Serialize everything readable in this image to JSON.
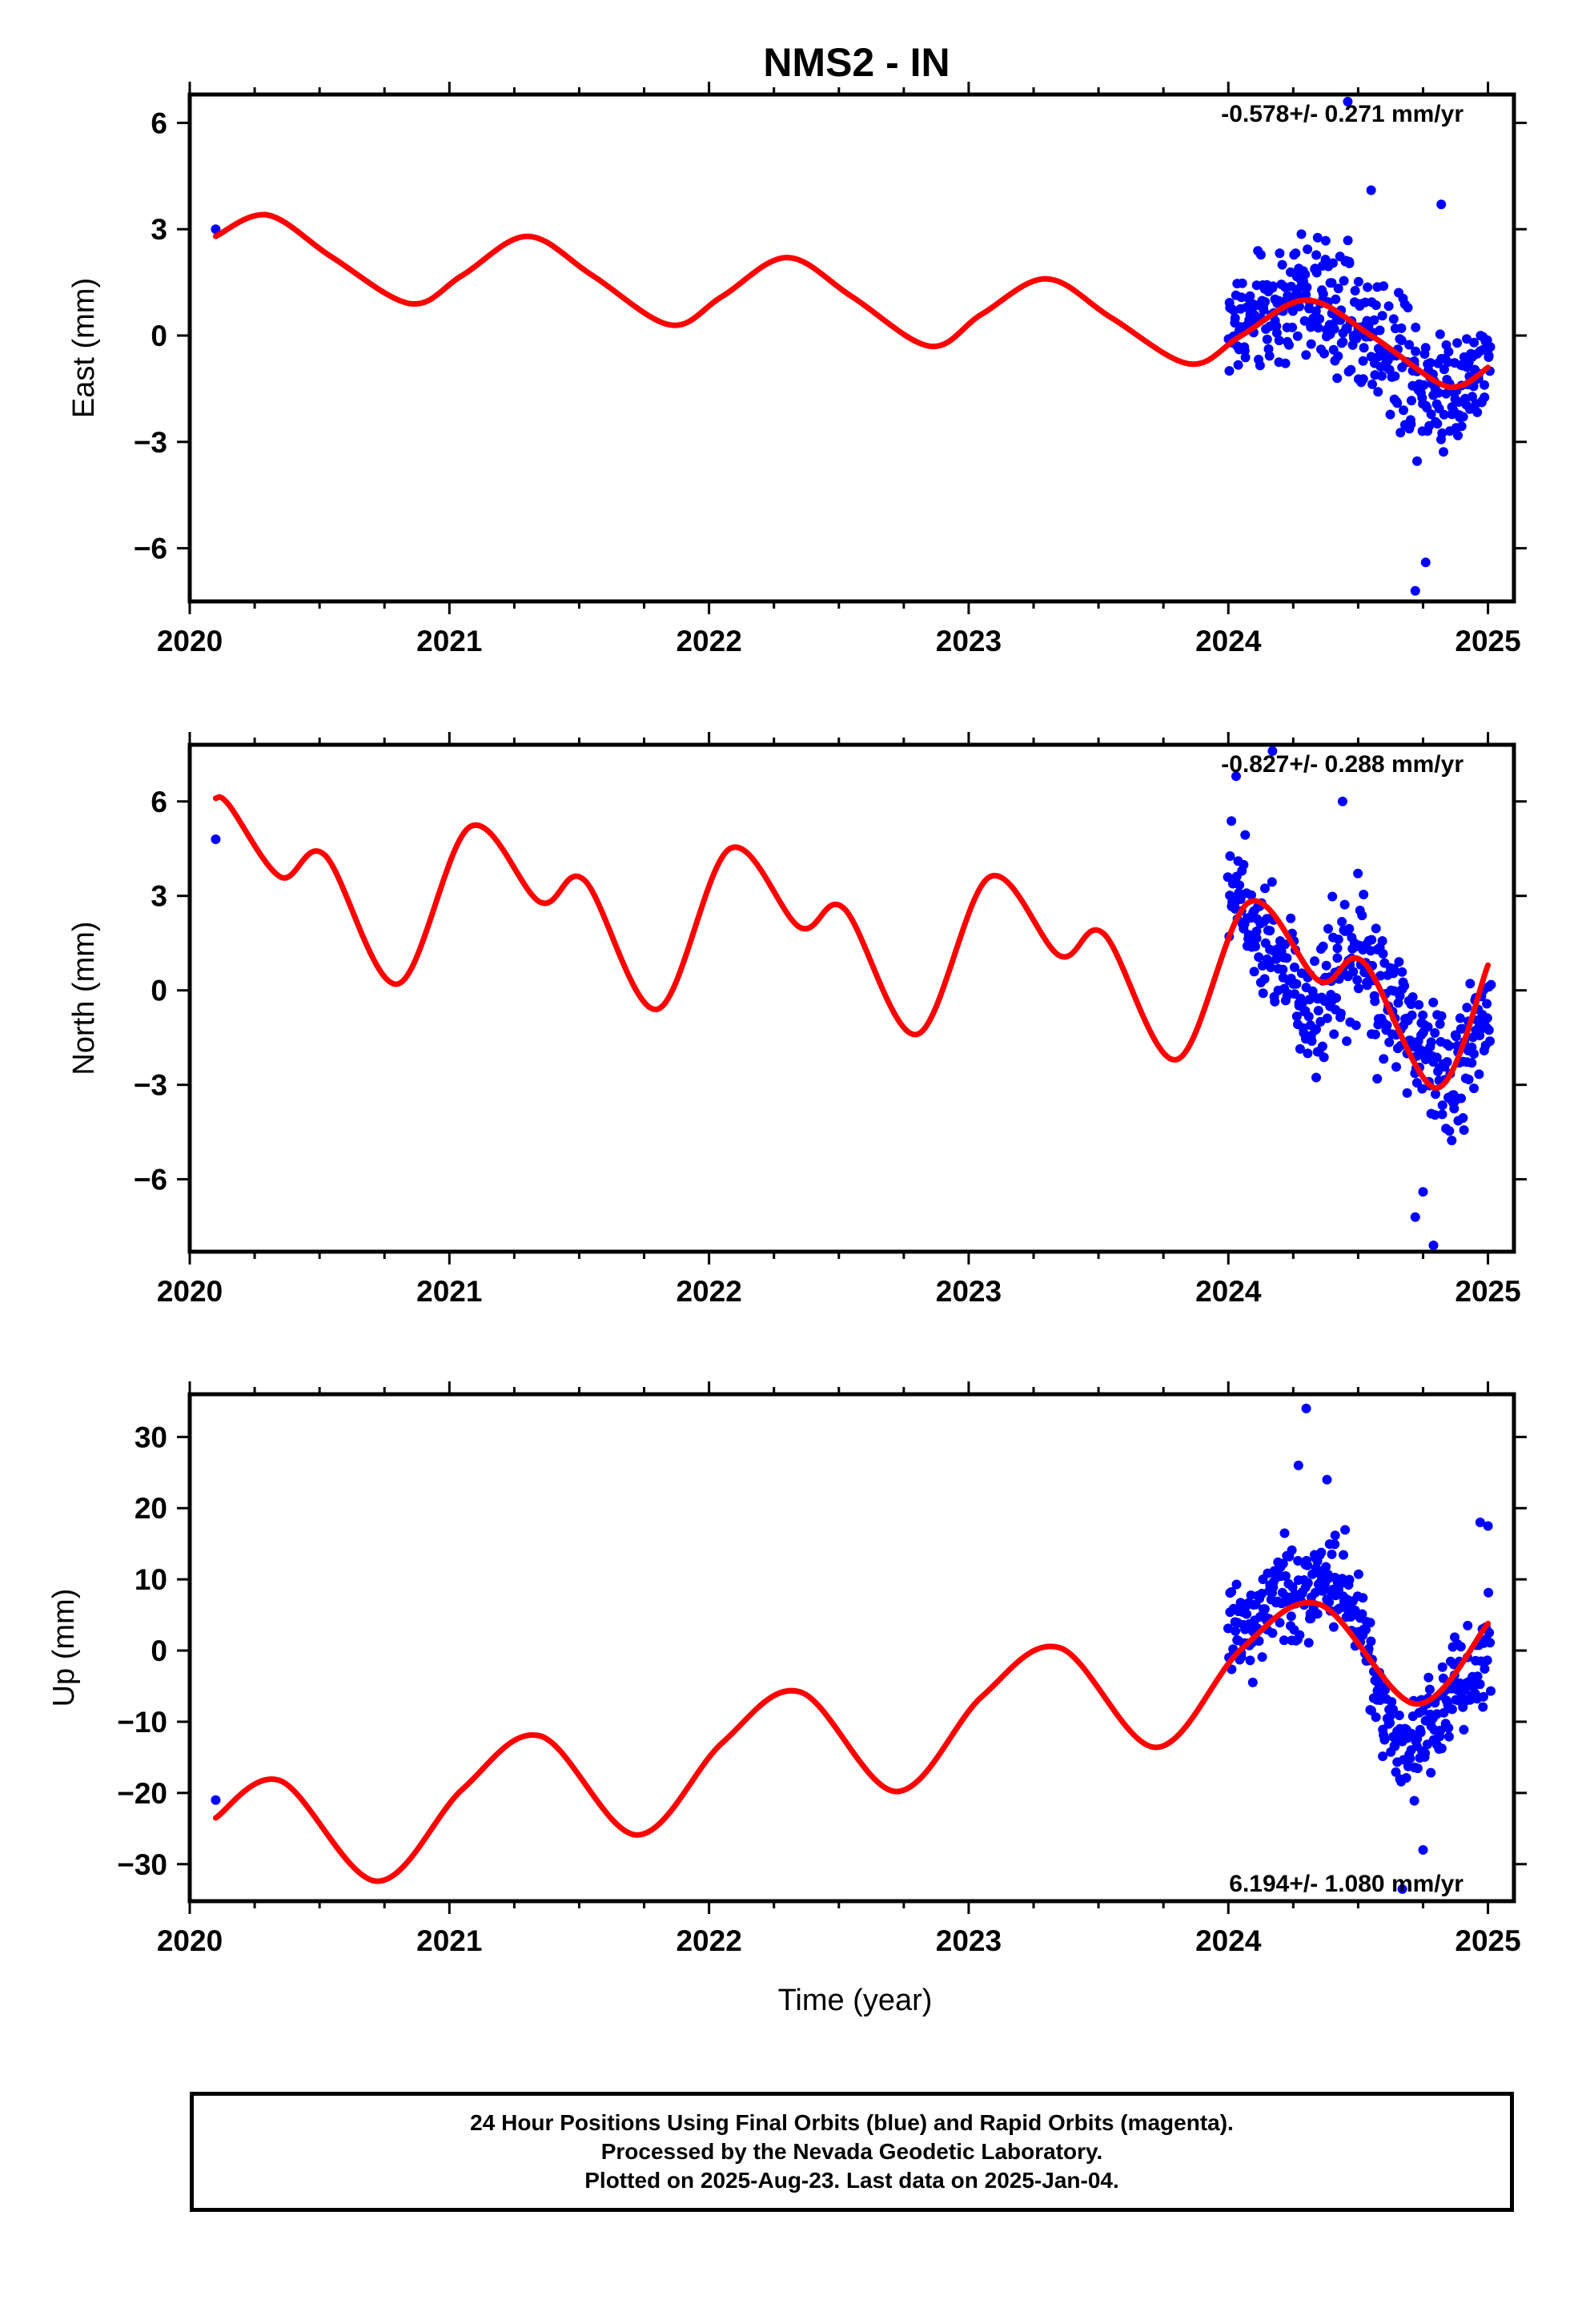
{
  "title": "NMS2 - IN",
  "x_tick_labels": [
    "2020",
    "2021",
    "2022",
    "2023",
    "2024",
    "2025"
  ],
  "xlabel": "Time (year)",
  "footer": {
    "line1": "24 Hour Positions Using Final Orbits (blue) and Rapid Orbits (magenta).",
    "line2": "Processed by the Nevada Geodetic Laboratory.",
    "line3": "Plotted on 2025-Aug-23. Last data on 2025-Jan-04."
  },
  "colors": {
    "data": "#0000ff",
    "model": "#ff0000",
    "axes": "#000000"
  },
  "chart_data": [
    {
      "type": "scatter",
      "panel": "east",
      "title": "NMS2 - IN",
      "ylabel": "East (mm)",
      "xlim": [
        2020.0,
        2025.1
      ],
      "ylim": [
        -7.5,
        6.8
      ],
      "y_ticks": [
        6,
        3,
        0,
        -3,
        -6
      ],
      "y_tick_labels": [
        "6",
        "3",
        "0",
        "−3",
        "−6"
      ],
      "x_ticks": [
        2020,
        2021,
        2022,
        2023,
        2024,
        2025
      ],
      "rate_text": "-0.578+/- 0.271 mm/yr",
      "rate_position": "top-right",
      "grid": false,
      "early_points": [
        [
          2020.1,
          3.0
        ]
      ],
      "data_range": [
        2024.0,
        2025.01
      ],
      "data_envelope": [
        {
          "x": 2024.0,
          "mean": 0.2,
          "spread": 2.3
        },
        {
          "x": 2024.3,
          "mean": 1.2,
          "spread": 2.6
        },
        {
          "x": 2024.6,
          "mean": -0.2,
          "spread": 2.9
        },
        {
          "x": 2024.8,
          "mean": -1.5,
          "spread": 2.8
        },
        {
          "x": 2025.0,
          "mean": -1.0,
          "spread": 2.2
        }
      ],
      "data_outliers": [
        [
          2024.46,
          6.6
        ],
        [
          2024.55,
          4.1
        ],
        [
          2024.72,
          -7.2
        ],
        [
          2024.76,
          -6.4
        ],
        [
          2024.82,
          3.7
        ]
      ],
      "model_curve": {
        "x": [
          2020.1,
          2020.3,
          2020.55,
          2020.85,
          2021.05,
          2021.3,
          2021.55,
          2021.85,
          2022.05,
          2022.3,
          2022.55,
          2022.85,
          2023.05,
          2023.3,
          2023.55,
          2023.85,
          2024.05,
          2024.3,
          2024.55,
          2024.8,
          2024.9,
          2025.0
        ],
        "y": [
          2.8,
          3.4,
          2.2,
          0.9,
          1.7,
          2.8,
          1.7,
          0.3,
          1.1,
          2.2,
          1.1,
          -0.3,
          0.6,
          1.6,
          0.5,
          -0.8,
          0.0,
          1.0,
          0.0,
          -1.3,
          -1.4,
          -0.9
        ]
      },
      "series": [
        {
          "name": "Final Orbits (blue)"
        },
        {
          "name": "Rapid Orbits (magenta)"
        }
      ]
    },
    {
      "type": "scatter",
      "panel": "north",
      "ylabel": "North (mm)",
      "xlim": [
        2020.0,
        2025.1
      ],
      "ylim": [
        -8.3,
        7.8
      ],
      "y_ticks": [
        6,
        3,
        0,
        -3,
        -6
      ],
      "y_tick_labels": [
        "6",
        "3",
        "0",
        "−3",
        "−6"
      ],
      "x_ticks": [
        2020,
        2021,
        2022,
        2023,
        2024,
        2025
      ],
      "rate_text": "-0.827+/- 0.288 mm/yr",
      "rate_position": "top-right",
      "grid": false,
      "early_points": [
        [
          2020.1,
          4.8
        ]
      ],
      "data_range": [
        2024.0,
        2025.01
      ],
      "data_envelope": [
        {
          "x": 2024.0,
          "mean": 3.5,
          "spread": 2.5
        },
        {
          "x": 2024.15,
          "mean": 2.0,
          "spread": 3.0
        },
        {
          "x": 2024.3,
          "mean": -0.5,
          "spread": 3.2
        },
        {
          "x": 2024.5,
          "mean": 0.8,
          "spread": 3.4
        },
        {
          "x": 2024.7,
          "mean": -1.5,
          "spread": 3.2
        },
        {
          "x": 2024.85,
          "mean": -2.8,
          "spread": 3.0
        },
        {
          "x": 2025.0,
          "mean": -1.0,
          "spread": 2.2
        }
      ],
      "data_outliers": [
        [
          2024.03,
          6.8
        ],
        [
          2024.17,
          7.6
        ],
        [
          2024.44,
          6.0
        ],
        [
          2024.72,
          -7.2
        ],
        [
          2024.79,
          -8.1
        ],
        [
          2024.75,
          -6.4
        ]
      ],
      "model_curve": {
        "x": [
          2020.1,
          2020.15,
          2020.35,
          2020.52,
          2020.8,
          2021.08,
          2021.35,
          2021.52,
          2021.8,
          2022.08,
          2022.35,
          2022.52,
          2022.8,
          2023.08,
          2023.35,
          2023.52,
          2023.8,
          2024.08,
          2024.35,
          2024.52,
          2024.8,
          2025.0
        ],
        "y": [
          6.1,
          5.9,
          3.6,
          4.3,
          0.2,
          5.2,
          2.8,
          3.5,
          -0.6,
          4.5,
          2.0,
          2.6,
          -1.4,
          3.6,
          1.1,
          1.8,
          -2.2,
          2.8,
          0.3,
          0.9,
          -3.1,
          0.8
        ]
      },
      "series": [
        {
          "name": "Final Orbits (blue)"
        },
        {
          "name": "Rapid Orbits (magenta)"
        }
      ]
    },
    {
      "type": "scatter",
      "panel": "up",
      "ylabel": "Up (mm)",
      "xlabel": "Time (year)",
      "xlim": [
        2020.0,
        2025.1
      ],
      "ylim": [
        -35.2,
        36.0
      ],
      "y_ticks": [
        30,
        20,
        10,
        0,
        -10,
        -20,
        -30
      ],
      "y_tick_labels": [
        "30",
        "20",
        "10",
        "0",
        "−10",
        "−20",
        "−30"
      ],
      "x_ticks": [
        2020,
        2021,
        2022,
        2023,
        2024,
        2025
      ],
      "rate_text": "6.194+/- 1.080 mm/yr",
      "rate_position": "bottom-right",
      "grid": false,
      "early_points": [
        [
          2020.1,
          -21.0
        ]
      ],
      "data_range": [
        2024.0,
        2025.01
      ],
      "data_envelope": [
        {
          "x": 2024.0,
          "mean": 1.0,
          "spread": 10.0
        },
        {
          "x": 2024.2,
          "mean": 8.0,
          "spread": 11.0
        },
        {
          "x": 2024.45,
          "mean": 10.0,
          "spread": 9.0
        },
        {
          "x": 2024.65,
          "mean": -15.0,
          "spread": 10.0
        },
        {
          "x": 2024.8,
          "mean": -10.0,
          "spread": 10.0
        },
        {
          "x": 2025.0,
          "mean": 0.0,
          "spread": 10.0
        }
      ],
      "data_outliers": [
        [
          2024.3,
          34.0
        ],
        [
          2024.27,
          26.0
        ],
        [
          2024.38,
          24.0
        ],
        [
          2024.67,
          -33.5
        ],
        [
          2024.75,
          -28.0
        ],
        [
          2024.97,
          18.0
        ],
        [
          2025.0,
          17.5
        ]
      ],
      "model_curve": {
        "x": [
          2020.1,
          2020.35,
          2020.72,
          2021.05,
          2021.35,
          2021.72,
          2022.05,
          2022.35,
          2022.72,
          2023.05,
          2023.35,
          2023.72,
          2024.05,
          2024.35,
          2024.72,
          2025.0
        ],
        "y": [
          -23.5,
          -18.3,
          -32.4,
          -19.5,
          -12.0,
          -25.9,
          -13.0,
          -5.8,
          -19.8,
          -6.5,
          0.4,
          -13.6,
          0.2,
          6.5,
          -7.5,
          3.8
        ]
      },
      "series": [
        {
          "name": "Final Orbits (blue)"
        },
        {
          "name": "Rapid Orbits (magenta)"
        }
      ]
    }
  ]
}
